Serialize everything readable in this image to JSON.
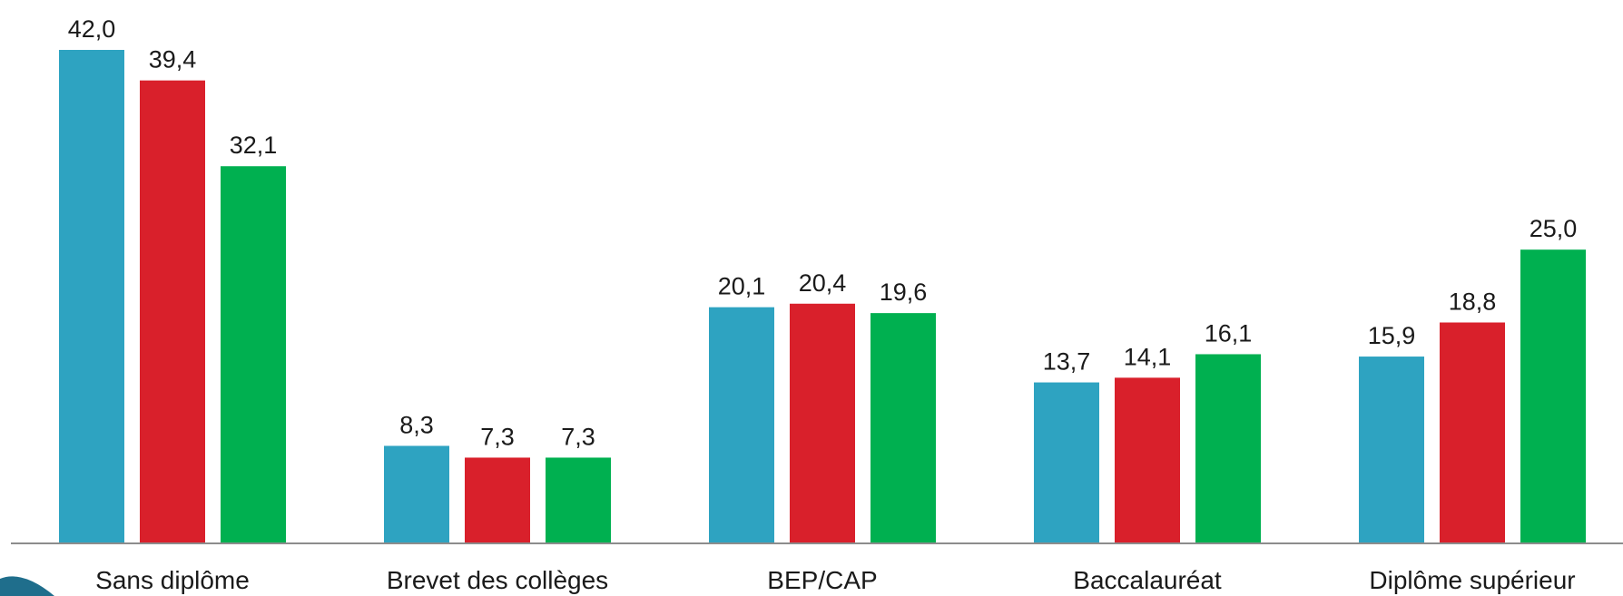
{
  "chart_data": {
    "type": "bar",
    "categories": [
      "Sans diplôme",
      "Brevet des collèges",
      "BEP/CAP",
      "Baccalauréat",
      "Diplôme supérieur"
    ],
    "series": [
      {
        "color": "#2ea3c1",
        "values": [
          42.0,
          8.3,
          20.1,
          13.7,
          15.9
        ]
      },
      {
        "color": "#d9202b",
        "values": [
          39.4,
          7.3,
          20.4,
          14.1,
          18.8
        ]
      },
      {
        "color": "#00b050",
        "values": [
          32.1,
          7.3,
          19.6,
          16.1,
          25.0
        ]
      }
    ],
    "data_labels": [
      [
        "42,0",
        "8,3",
        "20,1",
        "13,7",
        "15,9"
      ],
      [
        "39,4",
        "7,3",
        "20,4",
        "14,1",
        "18,8"
      ],
      [
        "32,1",
        "7,3",
        "19,6",
        "16,1",
        "25,0"
      ]
    ],
    "ylim": [
      0,
      42.0
    ],
    "grid": false,
    "legend": "none",
    "axis_color": "#8c8c8c",
    "corner_accent_color": "#1f6e8c"
  }
}
